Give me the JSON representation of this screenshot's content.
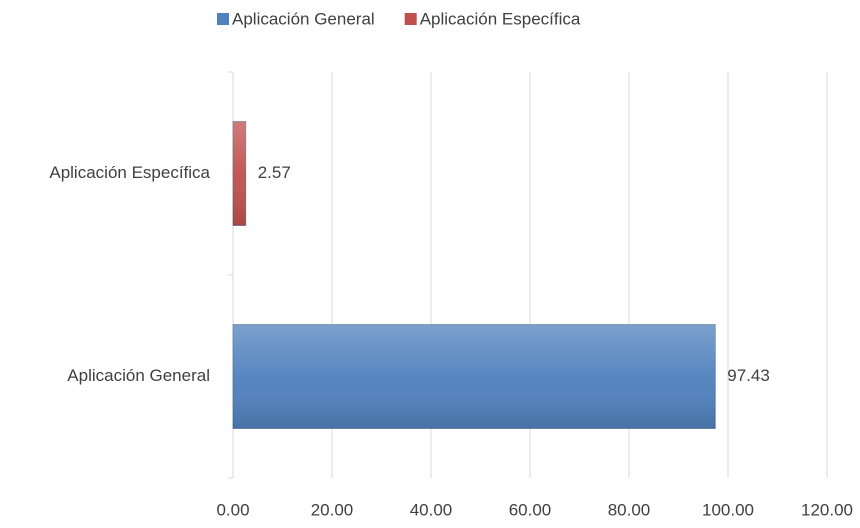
{
  "chart_data": {
    "type": "bar",
    "orientation": "horizontal",
    "categories": [
      "Aplicación General",
      "Aplicación Específica"
    ],
    "series": [
      {
        "name": "Aplicación General",
        "color": "#4f81bd",
        "values": [
          97.43,
          null
        ]
      },
      {
        "name": "Aplicación Específica",
        "color": "#c0504d",
        "values": [
          null,
          2.57
        ]
      }
    ],
    "xlim": [
      0,
      120
    ],
    "xticks": [
      {
        "value": 0,
        "label": "0.00"
      },
      {
        "value": 20,
        "label": "20.00"
      },
      {
        "value": 40,
        "label": "40.00"
      },
      {
        "value": 60,
        "label": "60.00"
      },
      {
        "value": 80,
        "label": "80.00"
      },
      {
        "value": 100,
        "label": "100.00"
      },
      {
        "value": 120,
        "label": "120.00"
      }
    ],
    "grid": true,
    "legend": "top"
  }
}
